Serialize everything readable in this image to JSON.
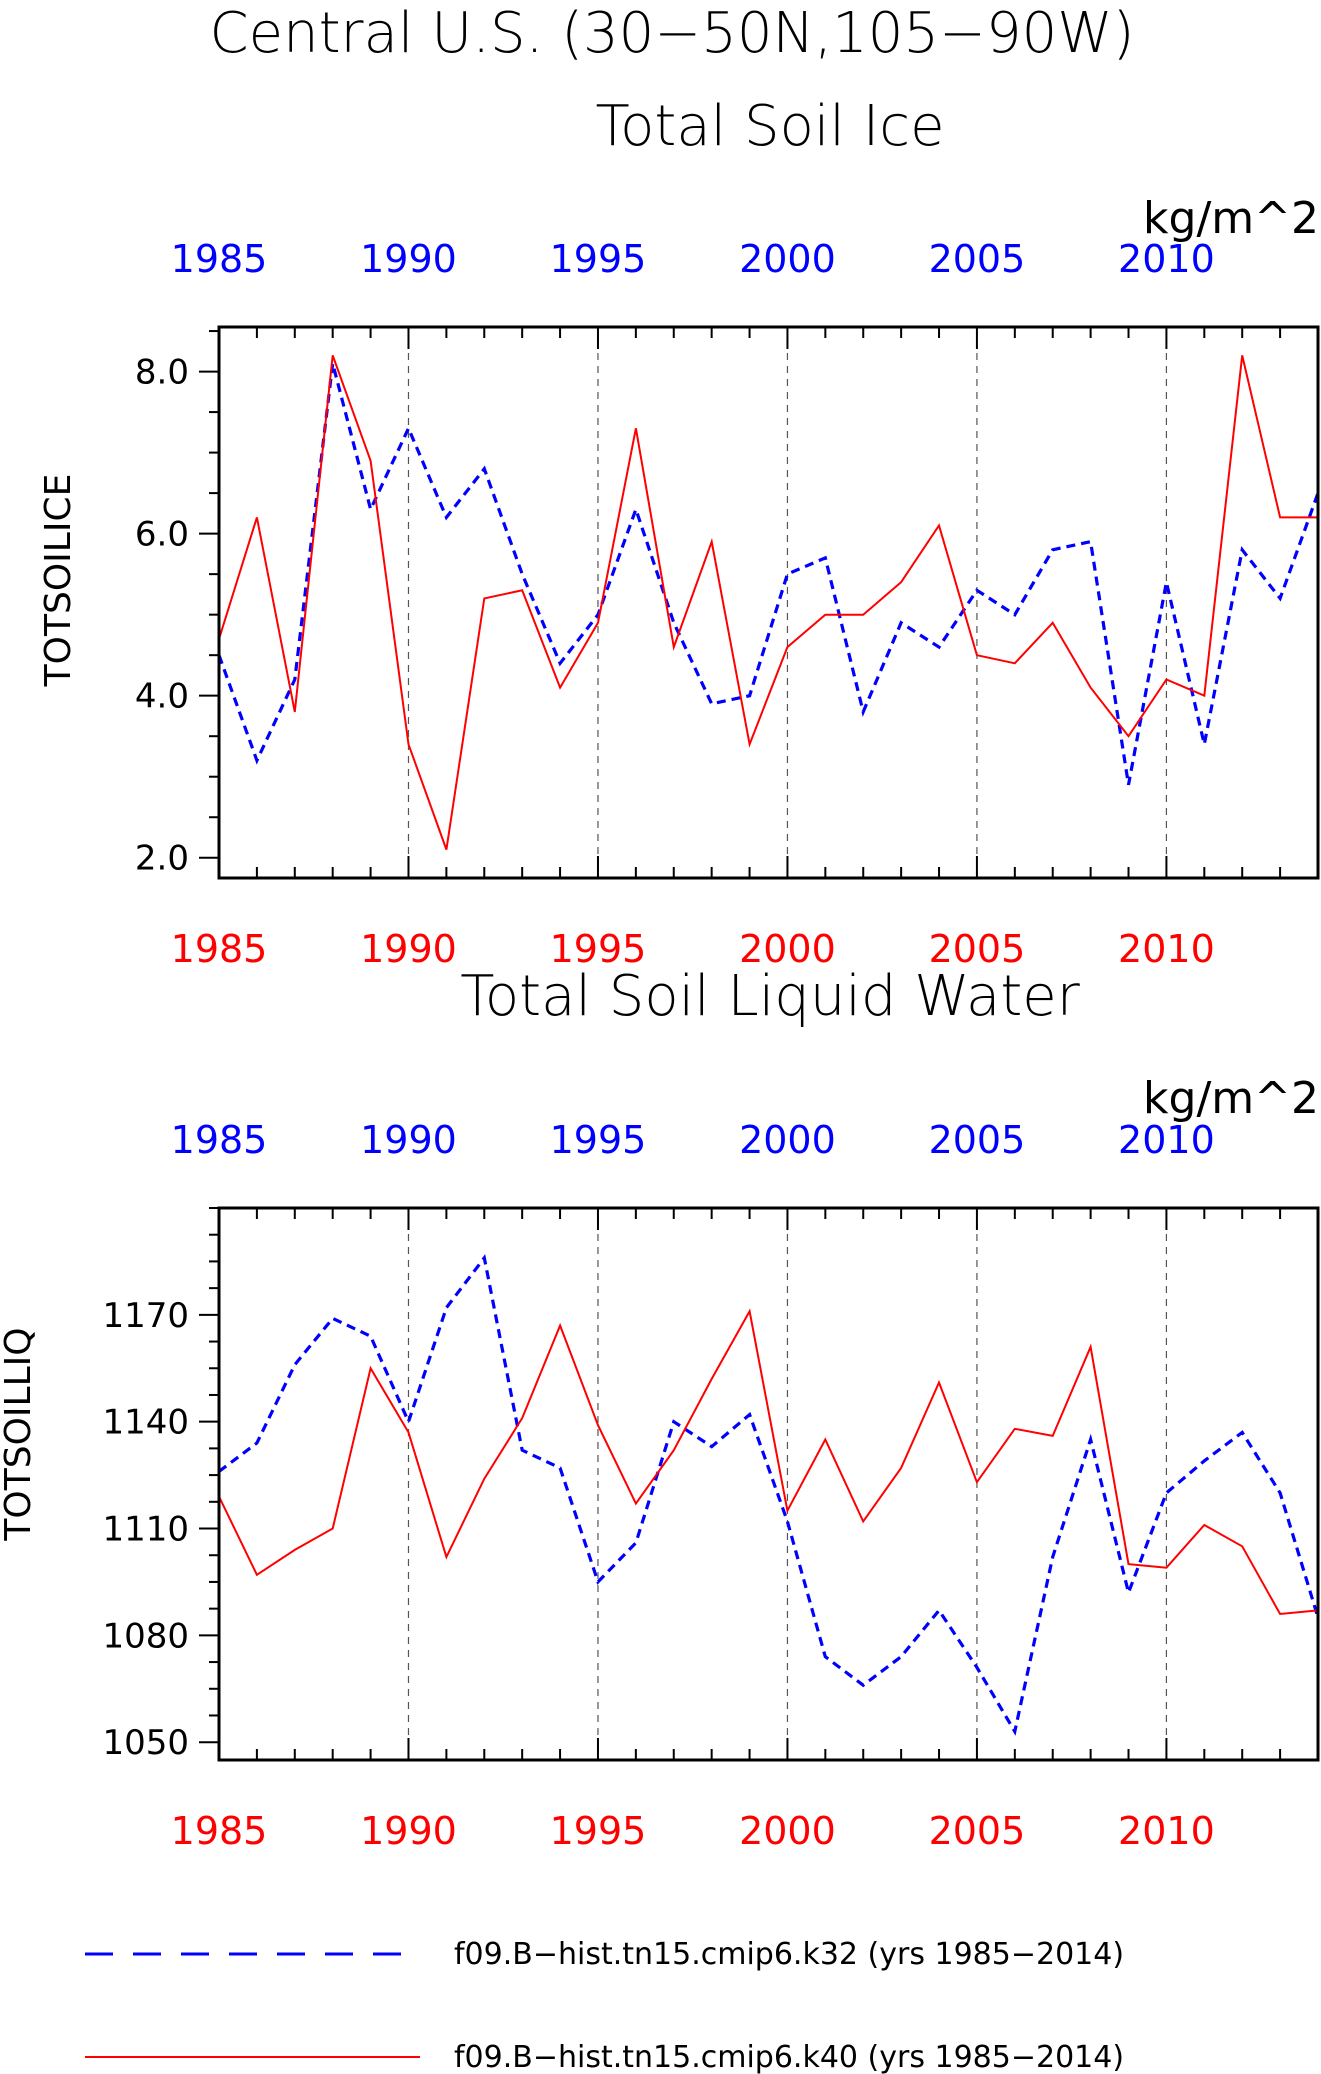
{
  "header": {
    "title": "Central U.S. (30−50N,105−90W)"
  },
  "colors": {
    "k32": "#0000ff",
    "k40": "#ff0000",
    "axis": "#000000",
    "grid": "#555555"
  },
  "legend": {
    "k32_label": "f09.B−hist.tn15.cmip6.k32 (yrs 1985−2014)",
    "k40_label": "f09.B−hist.tn15.cmip6.k40 (yrs 1985−2014)"
  },
  "chart_data": [
    {
      "type": "line",
      "title": "Total Soil Ice",
      "units": "kg/m^2",
      "ylabel": "TOTSOILICE",
      "xlim": [
        1985,
        2014
      ],
      "ylim": [
        1.75,
        8.55
      ],
      "yticks": [
        2.0,
        4.0,
        6.0,
        8.0
      ],
      "ytick_labels": [
        "2.0",
        "4.0",
        "6.0",
        "8.0"
      ],
      "xticks": [
        1985,
        1990,
        1995,
        2000,
        2005,
        2010
      ],
      "xtick_labels": [
        "1985",
        "1990",
        "1995",
        "2000",
        "2005",
        "2010"
      ],
      "grid": "vertical dashed at 1990, 1995, 2000, 2005, 2010",
      "x": [
        1985,
        1986,
        1987,
        1988,
        1989,
        1990,
        1991,
        1992,
        1993,
        1994,
        1995,
        1996,
        1997,
        1998,
        1999,
        2000,
        2001,
        2002,
        2003,
        2004,
        2005,
        2006,
        2007,
        2008,
        2009,
        2010,
        2011,
        2012,
        2013,
        2014
      ],
      "series": [
        {
          "name": "f09.B−hist.tn15.cmip6.k32 (yrs 1985−2014)",
          "style": "dashed",
          "values": [
            4.5,
            3.2,
            4.2,
            8.1,
            6.3,
            7.3,
            6.2,
            6.8,
            5.5,
            4.4,
            5.0,
            6.3,
            4.9,
            3.9,
            4.0,
            5.5,
            5.7,
            3.8,
            4.9,
            4.6,
            5.3,
            5.0,
            5.8,
            5.9,
            2.9,
            5.4,
            3.4,
            5.8,
            5.2,
            6.5
          ]
        },
        {
          "name": "f09.B−hist.tn15.cmip6.k40 (yrs 1985−2014)",
          "style": "solid",
          "values": [
            4.7,
            6.2,
            3.8,
            8.2,
            6.9,
            3.4,
            2.1,
            5.2,
            5.3,
            4.1,
            4.9,
            7.3,
            4.6,
            5.9,
            3.4,
            4.6,
            5.0,
            5.0,
            5.4,
            6.1,
            4.5,
            4.4,
            4.9,
            4.1,
            3.5,
            4.2,
            4.0,
            8.2,
            6.2,
            6.2
          ]
        }
      ]
    },
    {
      "type": "line",
      "title": "Total Soil Liquid Water",
      "units": "kg/m^2",
      "ylabel": "TOTSOILLIQ",
      "xlim": [
        1985,
        2014
      ],
      "ylim": [
        1045,
        1200
      ],
      "yticks": [
        1050,
        1080,
        1110,
        1140,
        1170
      ],
      "ytick_labels": [
        "1050",
        "1080",
        "1110",
        "1140",
        "1170"
      ],
      "xticks": [
        1985,
        1990,
        1995,
        2000,
        2005,
        2010
      ],
      "xtick_labels": [
        "1985",
        "1990",
        "1995",
        "2000",
        "2005",
        "2010"
      ],
      "grid": "vertical dashed at 1990, 1995, 2000, 2005, 2010",
      "x": [
        1985,
        1986,
        1987,
        1988,
        1989,
        1990,
        1991,
        1992,
        1993,
        1994,
        1995,
        1996,
        1997,
        1998,
        1999,
        2000,
        2001,
        2002,
        2003,
        2004,
        2005,
        2006,
        2007,
        2008,
        2009,
        2010,
        2011,
        2012,
        2013,
        2014
      ],
      "series": [
        {
          "name": "f09.B−hist.tn15.cmip6.k32 (yrs 1985−2014)",
          "style": "dashed",
          "values": [
            1126,
            1134,
            1156,
            1169,
            1164,
            1140,
            1172,
            1186,
            1132,
            1127,
            1095,
            1106,
            1140,
            1133,
            1142,
            1112,
            1074,
            1066,
            1074,
            1087,
            1071,
            1053,
            1102,
            1135,
            1092,
            1120,
            1129,
            1137,
            1120,
            1085
          ]
        },
        {
          "name": "f09.B−hist.tn15.cmip6.k40 (yrs 1985−2014)",
          "style": "solid",
          "values": [
            1119,
            1097,
            1104,
            1110,
            1155,
            1137,
            1102,
            1124,
            1141,
            1167,
            1139,
            1117,
            1132,
            1152,
            1171,
            1115,
            1135,
            1112,
            1127,
            1151,
            1123,
            1138,
            1136,
            1161,
            1100,
            1099,
            1111,
            1105,
            1086,
            1087
          ]
        }
      ]
    }
  ]
}
